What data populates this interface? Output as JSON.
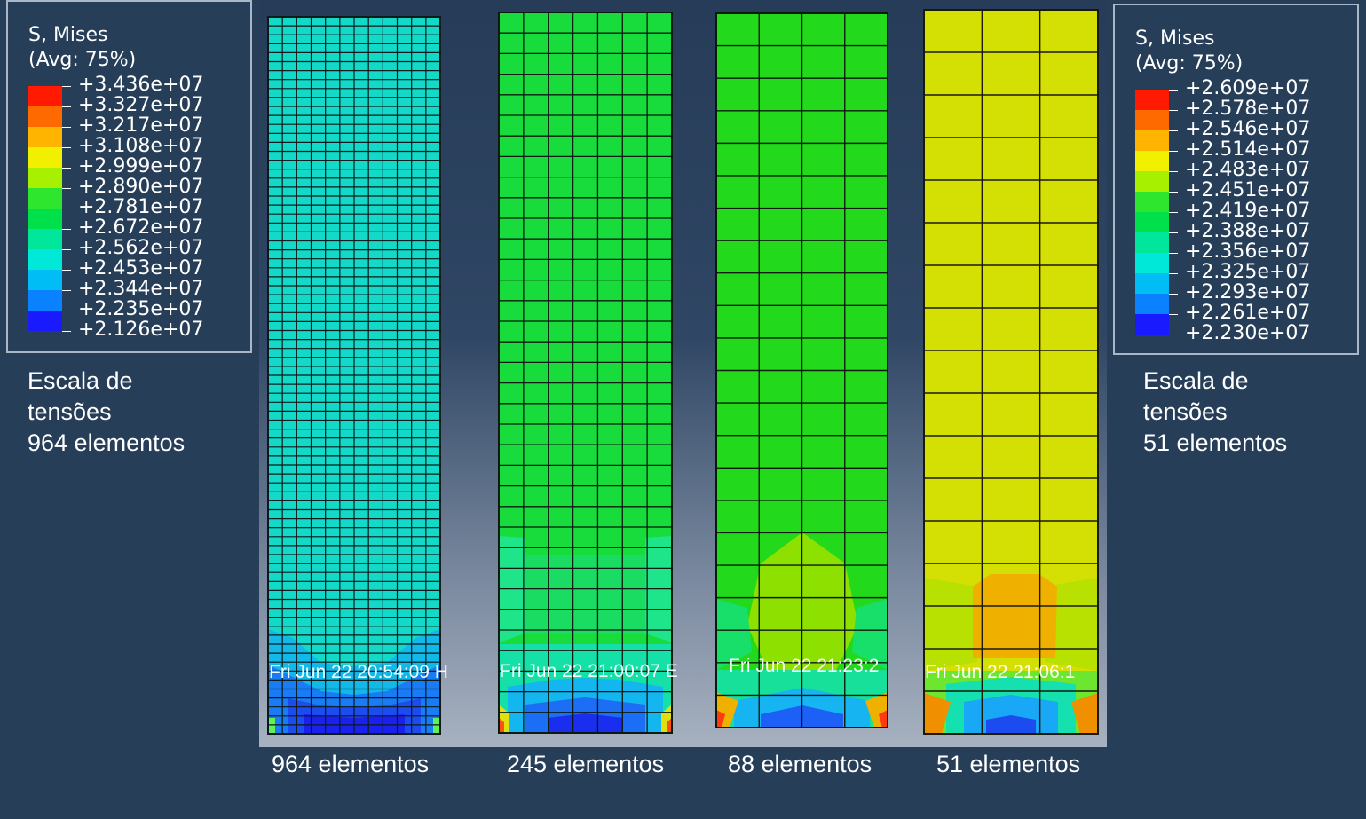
{
  "legend_left": {
    "title": "S, Mises\n(Avg: 75%)",
    "values": [
      "+3.436e+07",
      "+3.327e+07",
      "+3.217e+07",
      "+3.108e+07",
      "+2.999e+07",
      "+2.890e+07",
      "+2.781e+07",
      "+2.672e+07",
      "+2.562e+07",
      "+2.453e+07",
      "+2.344e+07",
      "+2.235e+07",
      "+2.126e+07"
    ],
    "caption": [
      "Escala de",
      "tensões",
      "964 elementos"
    ]
  },
  "legend_right": {
    "title": "S, Mises\n(Avg: 75%)",
    "values": [
      "+2.609e+07",
      "+2.578e+07",
      "+2.546e+07",
      "+2.514e+07",
      "+2.483e+07",
      "+2.451e+07",
      "+2.419e+07",
      "+2.388e+07",
      "+2.356e+07",
      "+2.325e+07",
      "+2.293e+07",
      "+2.261e+07",
      "+2.230e+07"
    ],
    "caption": [
      "Escala de",
      "tensões",
      "51 elementos"
    ]
  },
  "colormap": [
    "#ff1a00",
    "#ff6a00",
    "#ffb400",
    "#f0f000",
    "#a6f000",
    "#2ee62e",
    "#00e04a",
    "#00e69a",
    "#00e8d8",
    "#00bef5",
    "#0a82ff",
    "#1446ff",
    "#1a1aff"
  ],
  "models": [
    {
      "label": "964 elementos",
      "timestamp": "Fri Jun 22 20:54:09 H",
      "base_color": "#13d9c9"
    },
    {
      "label": "245 elementos",
      "timestamp": "Fri Jun 22 21:00:07 E",
      "base_color": "#18db3c"
    },
    {
      "label": "88 elementos",
      "timestamp": "Fri Jun 22 21:23:2",
      "base_color": "#22d91c"
    },
    {
      "label": "51 elementos",
      "timestamp": "Fri Jun 22 21:06:1",
      "base_color": "#d4df04"
    }
  ]
}
